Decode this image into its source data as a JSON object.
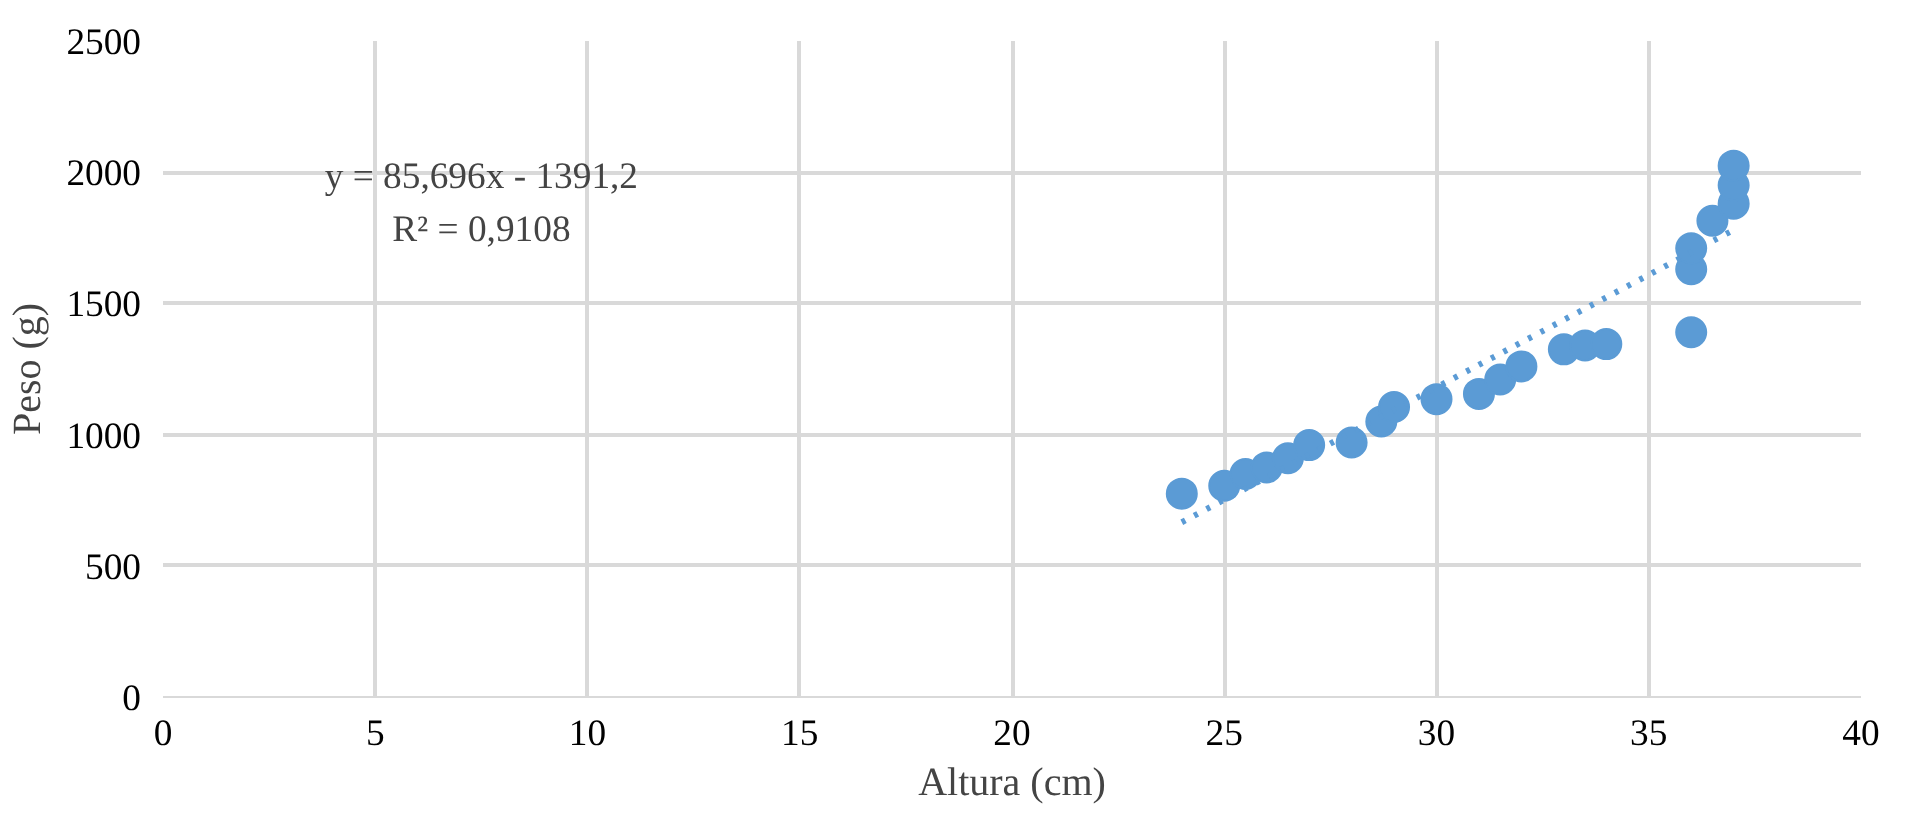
{
  "chart_data": {
    "type": "scatter",
    "xlabel": "Altura (cm)",
    "ylabel": "Peso (g)",
    "xlim": [
      0,
      40
    ],
    "xticks": [
      0,
      5,
      10,
      15,
      20,
      25,
      30,
      35,
      40
    ],
    "ylim": [
      0,
      2500
    ],
    "yticks": [
      0,
      500,
      1000,
      1500,
      2000,
      2500
    ],
    "grid": true,
    "marker": "circle",
    "annotations": [
      "y = 85,696x - 1391,2",
      "R² = 0,9108"
    ],
    "series": [
      {
        "color": "#5b9bd5",
        "x": [
          24,
          25,
          25.5,
          26,
          26.5,
          27,
          28,
          28.7,
          29,
          30,
          31,
          31.5,
          32,
          33,
          33.5,
          34,
          36,
          36,
          36,
          36.5,
          37,
          37,
          37
        ],
        "values": [
          775,
          805,
          850,
          875,
          910,
          960,
          970,
          1050,
          1105,
          1135,
          1155,
          1210,
          1260,
          1325,
          1340,
          1345,
          1390,
          1630,
          1710,
          1815,
          1880,
          1950,
          2025
        ]
      },
      {
        "type": "line",
        "color": "#5b9bd5",
        "line_style": "dotted",
        "marker": "none",
        "x": [
          24,
          37
        ],
        "values": [
          666,
          1780
        ]
      }
    ]
  }
}
